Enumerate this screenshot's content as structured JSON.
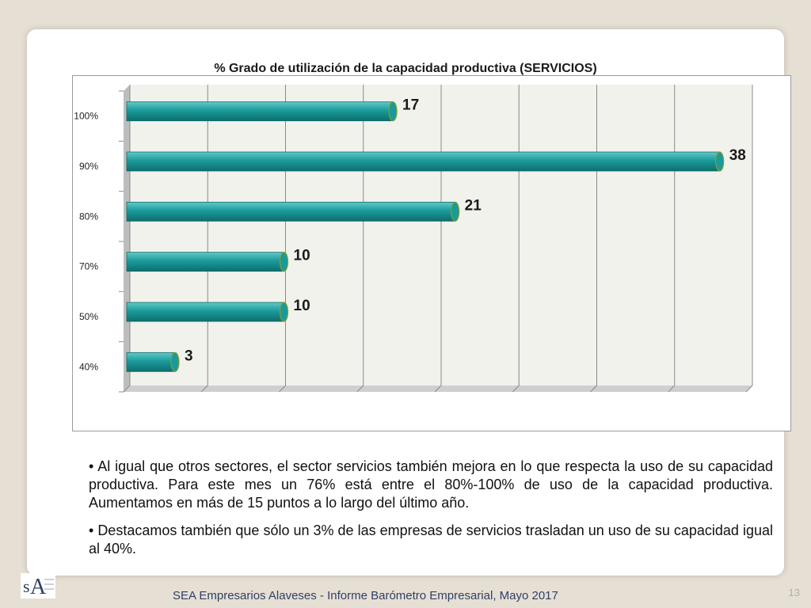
{
  "chart_data": {
    "type": "bar",
    "orientation": "horizontal",
    "title": "% Grado de utilización de la capacidad productiva (SERVICIOS)",
    "categories": [
      "100%",
      "90%",
      "80%",
      "70%",
      "50%",
      "40%"
    ],
    "values": [
      17,
      38,
      21,
      10,
      10,
      3
    ],
    "data_labels": [
      "17",
      "38",
      "21",
      "10",
      "10",
      "3"
    ],
    "xlim": [
      0,
      40
    ],
    "grid": true,
    "legend": "none",
    "colors": {
      "bar": "#1a9b9b",
      "bar_light": "#62c9c7",
      "bar_dark": "#0f6d6d",
      "label": "#1a1a1a"
    }
  },
  "bullets": [
    "• Al igual que otros sectores, el sector servicios también mejora en lo que respecta la uso de su capacidad productiva. Para este mes un 76% está entre el 80%-100% de uso de la capacidad productiva. Aumentamos en más de 15 puntos a lo largo del último año.",
    "• Destacamos también que sólo un 3% de las empresas de servicios trasladan un uso de su capacidad  igual al 40%."
  ],
  "page_number": "13",
  "footer": "SEA Empresarios Alaveses  -  Informe Barómetro Empresarial, Mayo 2017",
  "logo": {
    "icon": "sea-logo-icon",
    "letters": "SEA"
  }
}
